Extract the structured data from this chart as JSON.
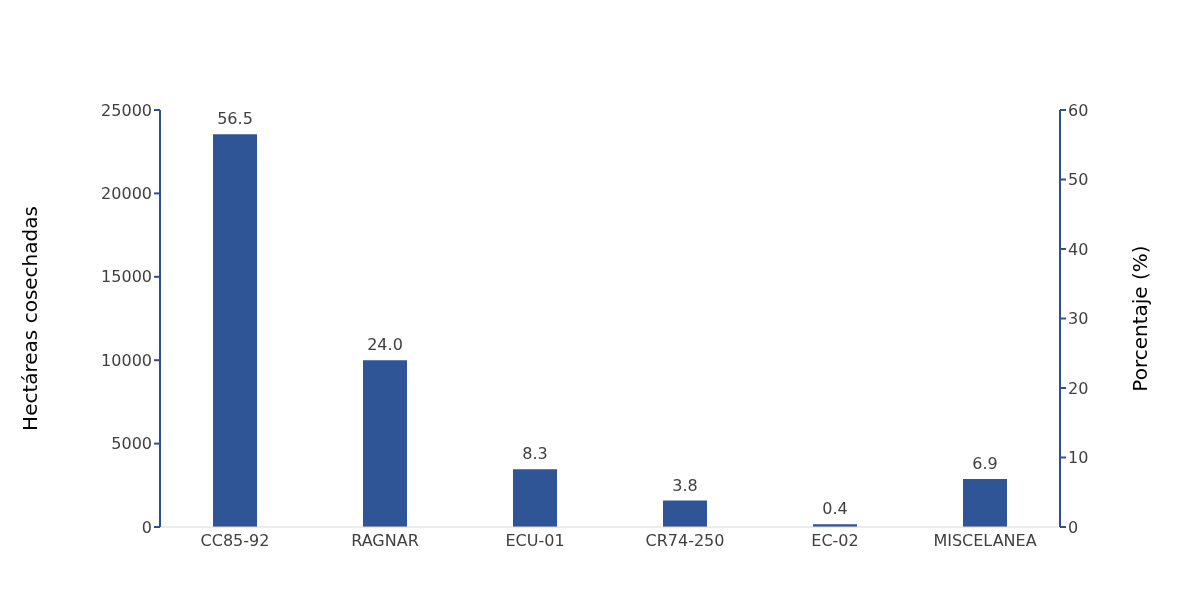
{
  "chart_data": {
    "type": "bar",
    "categories": [
      "CC85-92",
      "RAGNAR",
      "ECU-01",
      "CR74-250",
      "EC-02",
      "MISCELANEA"
    ],
    "series": [
      {
        "color": "#2f5597",
        "axis": "y2",
        "values": [
          56.5,
          24.0,
          8.3,
          3.8,
          0.4,
          6.9
        ],
        "value_labels": [
          "56.5",
          "24.0",
          "8.3",
          "3.8",
          "0.4",
          "6.9"
        ]
      }
    ],
    "ylabel": "Hectáreas cosechadas",
    "y2label": "Porcentaje (%)",
    "ylim": [
      0,
      25000
    ],
    "yticks": [
      0,
      5000,
      10000,
      15000,
      20000,
      25000
    ],
    "y2lim": [
      0,
      60
    ],
    "y2ticks": [
      0,
      10,
      20,
      30,
      40,
      50,
      60
    ],
    "grid": false,
    "legend": false
  }
}
